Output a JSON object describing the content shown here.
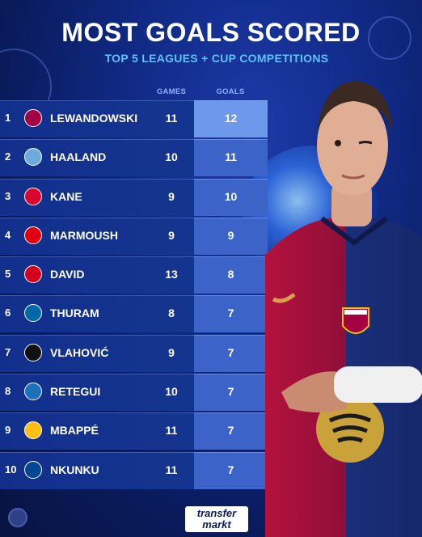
{
  "header": {
    "title": "MOST GOALS SCORED",
    "subtitle": "TOP 5 LEAGUES + CUP COMPETITIONS"
  },
  "columns": {
    "games": "GAMES",
    "goals": "GOALS"
  },
  "rows": [
    {
      "rank": "1",
      "name": "LEWANDOWSKI",
      "games": "11",
      "goals": "12",
      "crest_icon": "barcelona-crest",
      "crest_color": "#a50044"
    },
    {
      "rank": "2",
      "name": "HAALAND",
      "games": "10",
      "goals": "11",
      "crest_icon": "man-city-crest",
      "crest_color": "#6cabdd"
    },
    {
      "rank": "3",
      "name": "KANE",
      "games": "9",
      "goals": "10",
      "crest_icon": "bayern-crest",
      "crest_color": "#dc052d"
    },
    {
      "rank": "4",
      "name": "MARMOUSH",
      "games": "9",
      "goals": "9",
      "crest_icon": "frankfurt-crest",
      "crest_color": "#e1000f"
    },
    {
      "rank": "5",
      "name": "DAVID",
      "games": "13",
      "goals": "8",
      "crest_icon": "lille-crest",
      "crest_color": "#d6001c"
    },
    {
      "rank": "6",
      "name": "THURAM",
      "games": "8",
      "goals": "7",
      "crest_icon": "inter-crest",
      "crest_color": "#0068a8"
    },
    {
      "rank": "7",
      "name": "VLAHOVIĆ",
      "games": "9",
      "goals": "7",
      "crest_icon": "juventus-crest",
      "crest_color": "#111111"
    },
    {
      "rank": "8",
      "name": "RETEGUI",
      "games": "10",
      "goals": "7",
      "crest_icon": "atalanta-crest",
      "crest_color": "#1e71b8"
    },
    {
      "rank": "9",
      "name": "MBAPPÉ",
      "games": "11",
      "goals": "7",
      "crest_icon": "real-madrid-crest",
      "crest_color": "#febe10"
    },
    {
      "rank": "10",
      "name": "NKUNKU",
      "games": "11",
      "goals": "7",
      "crest_icon": "chelsea-crest",
      "crest_color": "#034694"
    }
  ],
  "brand": {
    "line1": "transfer",
    "line2": "markt"
  },
  "colors": {
    "accent": "#5fc1ff",
    "background": "#102a86",
    "goals_highlight": "#6e98ec"
  }
}
